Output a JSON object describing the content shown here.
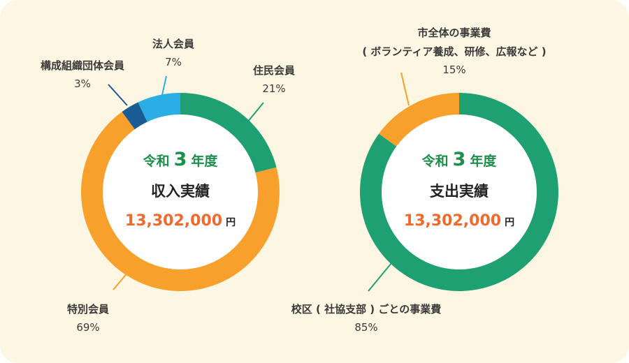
{
  "colors": {
    "green": "#1fa072",
    "orange": "#f7a12c",
    "sky": "#2aaee3",
    "navy": "#1a5a95",
    "year_text": "#1c8f4a",
    "amount_text": "#ef6a2c",
    "background": "#fdf6e3"
  },
  "chart_data": [
    {
      "type": "pie",
      "donut": true,
      "year_prefix": "令和",
      "year_num": "3",
      "year_suffix": "年度",
      "title": "収入実績",
      "amount": "13,302,000",
      "unit": "円",
      "slices": [
        {
          "label": "住民会員",
          "value": 21,
          "pct_label": "21%",
          "color": "#1fa072"
        },
        {
          "label": "特別会員",
          "value": 69,
          "pct_label": "69%",
          "color": "#f7a12c"
        },
        {
          "label": "構成組織団体会員",
          "value": 3,
          "pct_label": "3%",
          "color": "#1a5a95"
        },
        {
          "label": "法人会員",
          "value": 7,
          "pct_label": "7%",
          "color": "#2aaee3"
        }
      ]
    },
    {
      "type": "pie",
      "donut": true,
      "year_prefix": "令和",
      "year_num": "3",
      "year_suffix": "年度",
      "title": "支出実績",
      "amount": "13,302,000",
      "unit": "円",
      "slices": [
        {
          "label": "校区 ( 社協支部 ) ごとの事業費",
          "value": 85,
          "pct_label": "85%",
          "color": "#1fa072"
        },
        {
          "label": "市全体の事業費",
          "sublabel": "( ボランティア養成、研修、広報など )",
          "value": 15,
          "pct_label": "15%",
          "color": "#f7a12c"
        }
      ]
    }
  ]
}
